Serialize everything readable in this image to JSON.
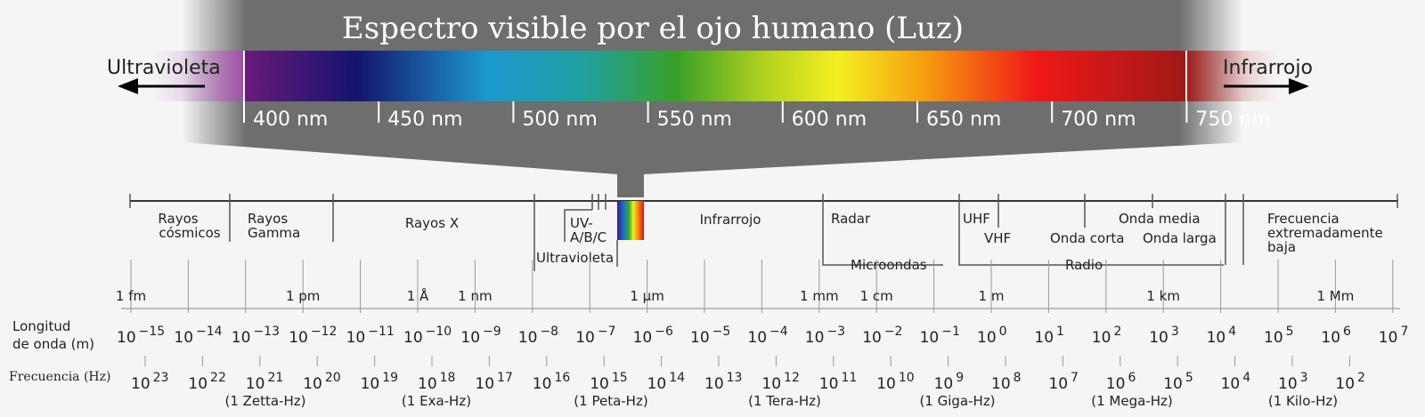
{
  "title": "Espectro visible por el ojo humano (Luz)",
  "ends": {
    "left": "Ultravioleta",
    "right": "Infrarrojo"
  },
  "visible_ticks": [
    "400 nm",
    "450 nm",
    "500 nm",
    "550 nm",
    "600 nm",
    "650 nm",
    "700 nm",
    "750 nm"
  ],
  "bands": {
    "cosmic": [
      "Rayos",
      "cósmicos"
    ],
    "gamma": [
      "Rayos",
      "Gamma"
    ],
    "xray": "Rayos X",
    "uv_abc": [
      "UV-",
      "A/B/C"
    ],
    "ultraviolet": "Ultravioleta",
    "infrared": "Infrarrojo",
    "radar": "Radar",
    "microwaves": "Microondas",
    "uhf": "UHF",
    "vhf": "VHF",
    "shortwave": "Onda corta",
    "mediumwave": "Onda media",
    "longwave": "Onda larga",
    "radio": "Radio",
    "elf": [
      "Frecuencia",
      "extremadamente",
      "baja"
    ]
  },
  "wavelength_units": [
    "1 fm",
    "1 pm",
    "1 Å",
    "1 nm",
    "1 µm",
    "1 mm",
    "1 cm",
    "1 m",
    "1 km",
    "1 Mm"
  ],
  "wavelength_label": [
    "Longitud",
    "de onda (m)"
  ],
  "wavelength_exponents": [
    "−15",
    "−14",
    "−13",
    "−12",
    "−11",
    "−10",
    "−9",
    "−8",
    "−7",
    "−6",
    "−5",
    "−4",
    "−3",
    "−2",
    "−1",
    "0",
    "1",
    "2",
    "3",
    "4",
    "5",
    "6",
    "7"
  ],
  "frequency_label": "Frecuencia (Hz)",
  "frequency_exponents": [
    "23",
    "22",
    "21",
    "20",
    "19",
    "18",
    "17",
    "16",
    "15",
    "14",
    "13",
    "12",
    "11",
    "10",
    "9",
    "8",
    "7",
    "6",
    "5",
    "4",
    "3",
    "2"
  ],
  "frequency_units": [
    "(1 Zetta-Hz)",
    "(1 Exa-Hz)",
    "(1 Peta-Hz)",
    "(1 Tera-Hz)",
    "(1 Giga-Hz)",
    "(1 Mega-Hz)",
    "(1 Kilo-Hz)"
  ],
  "colors": {
    "background": "#f5f5f5",
    "funnel": "#6e6e6e",
    "axis": "#333333"
  }
}
